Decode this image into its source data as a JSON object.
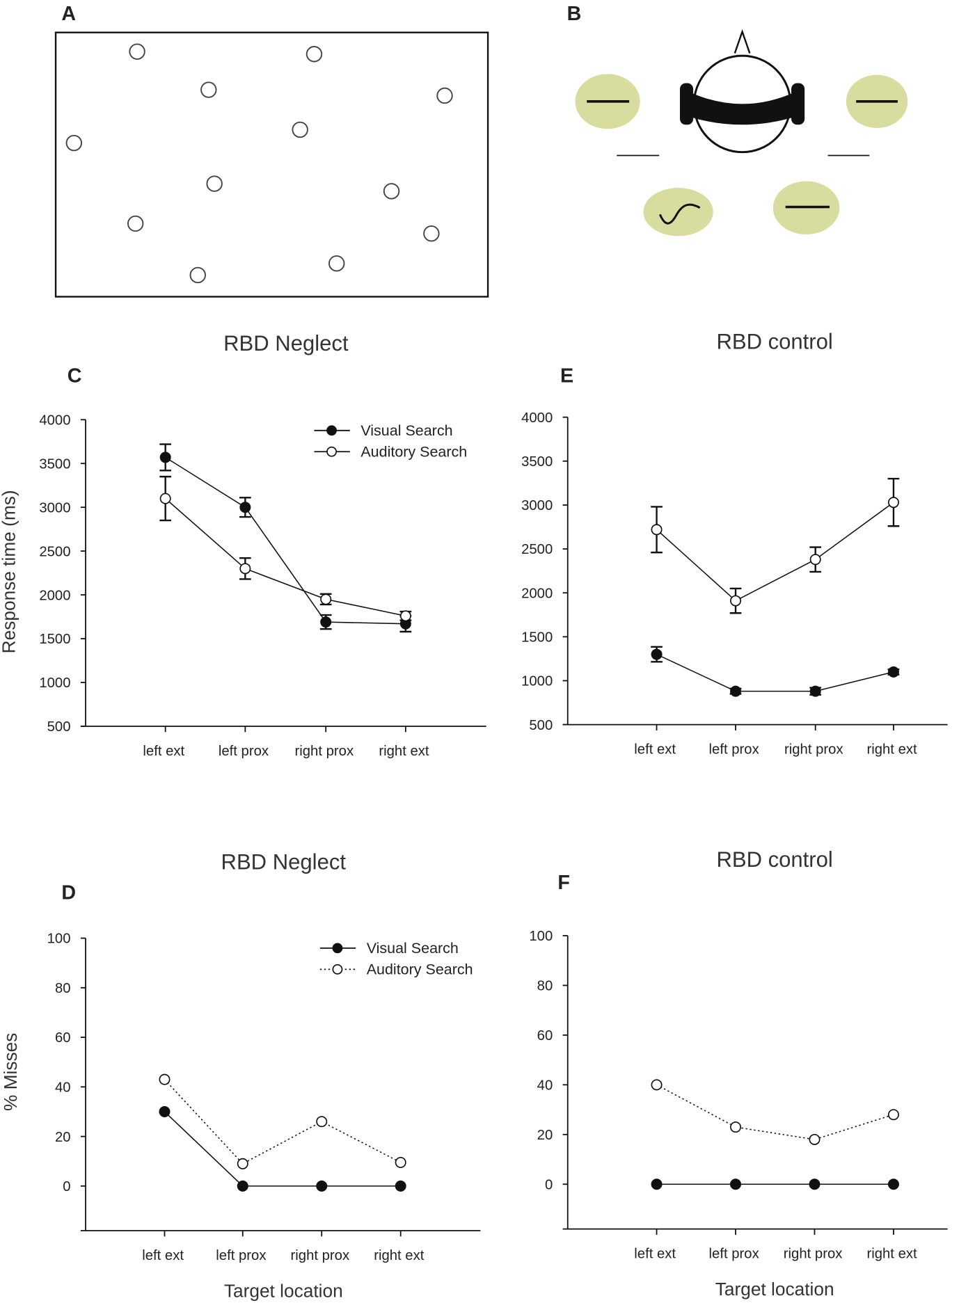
{
  "panel_labels": {
    "a": "A",
    "b": "B",
    "c": "C",
    "d": "D",
    "e": "E",
    "f": "F"
  },
  "panel_a": {
    "stimulus": "array of 12 open circles in a rectangular display"
  },
  "panel_b": {
    "ellipse_color": "#d8dc9f"
  },
  "chart_data": [
    {
      "id": "C",
      "type": "line",
      "title": "RBD Neglect",
      "xlabel": "",
      "ylabel": "Response time (ms)",
      "categories": [
        "left ext",
        "left prox",
        "right prox",
        "right ext"
      ],
      "ylim": [
        500,
        4000
      ],
      "yticks": [
        500,
        1000,
        1500,
        2000,
        2500,
        3000,
        3500,
        4000
      ],
      "legend": "top-right",
      "grid": false,
      "series": [
        {
          "name": "Visual Search",
          "marker": "filled",
          "line": "solid",
          "values": [
            3570,
            3000,
            1690,
            1670
          ],
          "errors": [
            150,
            110,
            80,
            90
          ]
        },
        {
          "name": "Auditory Search",
          "marker": "open",
          "line": "solid",
          "values": [
            3100,
            2300,
            1950,
            1760
          ],
          "errors": [
            250,
            120,
            60,
            50
          ]
        }
      ]
    },
    {
      "id": "E",
      "type": "line",
      "title": "RBD control",
      "xlabel": "",
      "ylabel": "",
      "categories": [
        "left ext",
        "left prox",
        "right prox",
        "right ext"
      ],
      "ylim": [
        500,
        4000
      ],
      "yticks": [
        500,
        1000,
        1500,
        2000,
        2500,
        3000,
        3500,
        4000
      ],
      "legend": "none",
      "grid": false,
      "series": [
        {
          "marker": "filled",
          "line": "solid",
          "values": [
            1300,
            880,
            880,
            1100
          ],
          "errors": [
            85,
            30,
            40,
            30
          ]
        },
        {
          "marker": "open",
          "line": "solid",
          "values": [
            2720,
            1910,
            2380,
            3030
          ],
          "errors": [
            260,
            140,
            140,
            270
          ]
        }
      ]
    },
    {
      "id": "D",
      "type": "line",
      "title": "RBD Neglect",
      "xlabel": "Target location",
      "ylabel": "% Misses",
      "categories": [
        "left ext",
        "left prox",
        "right prox",
        "right ext"
      ],
      "ylim": [
        -18,
        100
      ],
      "yticks": [
        0,
        20,
        40,
        60,
        80,
        100
      ],
      "legend": "top-right",
      "grid": false,
      "series": [
        {
          "name": "Visual Search",
          "marker": "filled",
          "line": "solid",
          "values": [
            30,
            0,
            0,
            0
          ]
        },
        {
          "name": "Auditory Search",
          "marker": "open",
          "line": "dotted",
          "values": [
            43,
            9,
            26,
            9.5
          ]
        }
      ]
    },
    {
      "id": "F",
      "type": "line",
      "title": "RBD control",
      "xlabel": "Target location",
      "ylabel": "",
      "categories": [
        "left ext",
        "left prox",
        "right prox",
        "right ext"
      ],
      "ylim": [
        -18,
        100
      ],
      "yticks": [
        0,
        20,
        40,
        60,
        80,
        100
      ],
      "legend": "none",
      "grid": false,
      "series": [
        {
          "marker": "filled",
          "line": "solid",
          "values": [
            0,
            0,
            0,
            0
          ]
        },
        {
          "marker": "open",
          "line": "dotted",
          "values": [
            40,
            23,
            18,
            28
          ]
        }
      ]
    }
  ]
}
